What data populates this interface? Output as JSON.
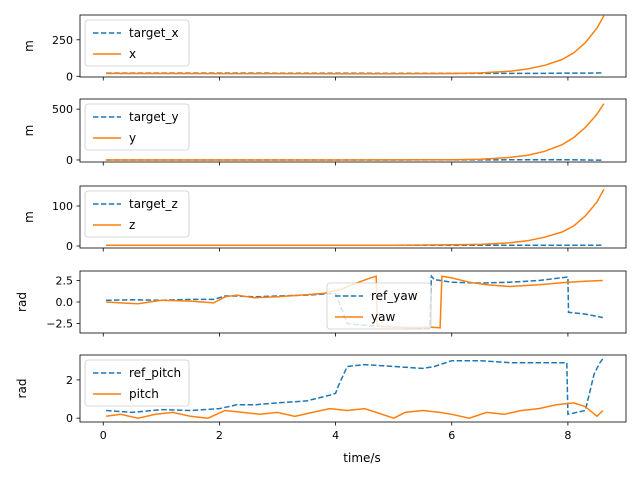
{
  "figure": {
    "xlabel": "time/s"
  },
  "chart_data": [
    {
      "type": "line",
      "ylabel": "m",
      "xlim": [
        -0.4,
        9.0
      ],
      "ylim": [
        -5,
        420
      ],
      "xticks": [
        0,
        2,
        4,
        6,
        8
      ],
      "xticklabels": [
        "0",
        "2",
        "4",
        "6",
        "8"
      ],
      "show_xticklabels": false,
      "yticks": [
        0,
        250
      ],
      "yticklabels": [
        "0",
        "250"
      ],
      "legend": "top-left",
      "series": [
        {
          "name": "target_x",
          "style": "dashed",
          "color": "#1f77b4",
          "x": [
            0.05,
            1,
            2,
            3,
            4,
            5,
            6,
            7,
            7.5,
            8,
            8.3,
            8.6
          ],
          "y": [
            22,
            22,
            22,
            21,
            21,
            20,
            20,
            20,
            20,
            22,
            22,
            23
          ]
        },
        {
          "name": "x",
          "style": "solid",
          "color": "#ff7f0e",
          "x": [
            0.05,
            1,
            2,
            3,
            4,
            5,
            5.5,
            6,
            6.5,
            7,
            7.3,
            7.6,
            7.9,
            8.1,
            8.3,
            8.5,
            8.62
          ],
          "y": [
            20,
            19,
            18,
            18,
            17,
            17,
            18,
            19,
            23,
            35,
            50,
            75,
            115,
            160,
            230,
            330,
            415
          ]
        }
      ]
    },
    {
      "type": "line",
      "ylabel": "m",
      "xlim": [
        -0.4,
        9.0
      ],
      "ylim": [
        -20,
        600
      ],
      "xticks": [
        0,
        2,
        4,
        6,
        8
      ],
      "xticklabels": [
        "0",
        "2",
        "4",
        "6",
        "8"
      ],
      "show_xticklabels": false,
      "yticks": [
        0,
        500
      ],
      "yticklabels": [
        "0",
        "500"
      ],
      "legend": "top-left",
      "series": [
        {
          "name": "target_y",
          "style": "dashed",
          "color": "#1f77b4",
          "x": [
            0.05,
            2,
            4,
            6,
            7,
            8,
            8.3,
            8.6
          ],
          "y": [
            0,
            0,
            0,
            1,
            2,
            3,
            0,
            -2
          ]
        },
        {
          "name": "y",
          "style": "solid",
          "color": "#ff7f0e",
          "x": [
            0.05,
            2,
            4,
            5,
            6,
            6.5,
            7,
            7.3,
            7.6,
            7.9,
            8.1,
            8.3,
            8.5,
            8.62
          ],
          "y": [
            0,
            0,
            0,
            1,
            3,
            8,
            25,
            45,
            85,
            150,
            220,
            320,
            450,
            555
          ]
        }
      ]
    },
    {
      "type": "line",
      "ylabel": "m",
      "xlim": [
        -0.4,
        9.0
      ],
      "ylim": [
        -5,
        150
      ],
      "xticks": [
        0,
        2,
        4,
        6,
        8
      ],
      "xticklabels": [
        "0",
        "2",
        "4",
        "6",
        "8"
      ],
      "show_xticklabels": false,
      "yticks": [
        0,
        100
      ],
      "yticklabels": [
        "0",
        "100"
      ],
      "legend": "top-left",
      "series": [
        {
          "name": "target_z",
          "style": "dashed",
          "color": "#1f77b4",
          "x": [
            0.05,
            2,
            4,
            6,
            8,
            8.6
          ],
          "y": [
            2,
            2,
            2,
            2,
            2,
            2
          ]
        },
        {
          "name": "z",
          "style": "solid",
          "color": "#ff7f0e",
          "x": [
            0.05,
            2,
            4,
            5,
            6,
            6.5,
            7,
            7.3,
            7.6,
            7.9,
            8.1,
            8.3,
            8.5,
            8.62
          ],
          "y": [
            2,
            2,
            2,
            2,
            3,
            4,
            8,
            13,
            22,
            35,
            50,
            75,
            110,
            142
          ]
        }
      ]
    },
    {
      "type": "line",
      "ylabel": "rad",
      "xlim": [
        -0.4,
        9.0
      ],
      "ylim": [
        -3.6,
        3.6
      ],
      "xticks": [
        0,
        2,
        4,
        6,
        8
      ],
      "xticklabels": [
        "0",
        "2",
        "4",
        "6",
        "8"
      ],
      "show_xticklabels": false,
      "yticks": [
        -2.5,
        0.0,
        2.5
      ],
      "yticklabels": [
        "−2.5",
        "0.0",
        "2.5"
      ],
      "legend": "center",
      "series": [
        {
          "name": "ref_yaw",
          "style": "dashed",
          "color": "#1f77b4",
          "x": [
            0.05,
            0.5,
            1,
            1.5,
            1.9,
            2.1,
            2.3,
            2.6,
            3,
            3.5,
            4,
            4.2,
            4.5,
            5,
            5.4,
            5.62,
            5.65,
            5.7,
            6,
            6.5,
            7,
            7.5,
            8,
            8.01,
            8.3,
            8.6
          ],
          "y": [
            0.2,
            0.25,
            0.2,
            0.3,
            0.3,
            0.7,
            0.7,
            0.6,
            0.7,
            0.8,
            1.0,
            -2.5,
            -2.7,
            -2.9,
            -3.0,
            -3.0,
            3.0,
            2.6,
            2.3,
            2.2,
            2.3,
            2.5,
            2.9,
            -1.2,
            -1.4,
            -1.8
          ]
        },
        {
          "name": "yaw",
          "style": "solid",
          "color": "#ff7f0e",
          "x": [
            0.05,
            0.3,
            0.6,
            1,
            1.5,
            1.9,
            2.1,
            2.3,
            2.6,
            3,
            3.4,
            3.8,
            4.1,
            4.4,
            4.6,
            4.7,
            4.72,
            5,
            5.3,
            5.6,
            5.8,
            5.83,
            6,
            6.3,
            6.6,
            7,
            7.5,
            8,
            8.3,
            8.6
          ],
          "y": [
            0.0,
            -0.1,
            -0.2,
            0.2,
            0.1,
            -0.1,
            0.6,
            0.8,
            0.5,
            0.6,
            0.8,
            1.0,
            1.5,
            2.3,
            2.8,
            3.0,
            -2.8,
            -2.9,
            -3.0,
            -2.9,
            -3.0,
            3.0,
            2.8,
            2.3,
            2.0,
            1.8,
            2.0,
            2.3,
            2.4,
            2.5
          ]
        }
      ]
    },
    {
      "type": "line",
      "ylabel": "rad",
      "xlim": [
        -0.4,
        9.0
      ],
      "ylim": [
        -0.2,
        3.3
      ],
      "xticks": [
        0,
        2,
        4,
        6,
        8
      ],
      "xticklabels": [
        "0",
        "2",
        "4",
        "6",
        "8"
      ],
      "show_xticklabels": true,
      "yticks": [
        0,
        2
      ],
      "yticklabels": [
        "0",
        "2"
      ],
      "legend": "top-left",
      "series": [
        {
          "name": "ref_pitch",
          "style": "dashed",
          "color": "#1f77b4",
          "x": [
            0.05,
            0.5,
            1,
            1.5,
            2,
            2.3,
            2.6,
            3,
            3.5,
            3.9,
            4,
            4.05,
            4.2,
            4.5,
            5,
            5.5,
            5.7,
            6,
            6.5,
            7,
            7.5,
            7.98,
            8.0,
            8.3,
            8.45,
            8.55,
            8.6
          ],
          "y": [
            0.4,
            0.3,
            0.45,
            0.4,
            0.5,
            0.7,
            0.7,
            0.8,
            0.9,
            1.2,
            1.3,
            1.7,
            2.7,
            2.8,
            2.7,
            2.6,
            2.7,
            3.0,
            3.0,
            2.9,
            2.9,
            2.9,
            0.2,
            0.4,
            2.3,
            2.9,
            3.1
          ]
        },
        {
          "name": "pitch",
          "style": "solid",
          "color": "#ff7f0e",
          "x": [
            0.05,
            0.3,
            0.6,
            0.9,
            1.2,
            1.5,
            1.8,
            2.1,
            2.4,
            2.7,
            3,
            3.3,
            3.6,
            3.9,
            4.2,
            4.5,
            4.8,
            5,
            5.2,
            5.5,
            5.8,
            6,
            6.3,
            6.6,
            6.9,
            7.2,
            7.5,
            7.8,
            8.1,
            8.3,
            8.5,
            8.6
          ],
          "y": [
            0.1,
            0.2,
            0.0,
            0.2,
            0.3,
            0.1,
            0.0,
            0.4,
            0.3,
            0.2,
            0.3,
            0.1,
            0.3,
            0.5,
            0.4,
            0.5,
            0.2,
            0.0,
            0.3,
            0.4,
            0.3,
            0.2,
            0.0,
            0.3,
            0.2,
            0.4,
            0.5,
            0.7,
            0.8,
            0.6,
            0.1,
            0.4
          ]
        }
      ]
    }
  ]
}
